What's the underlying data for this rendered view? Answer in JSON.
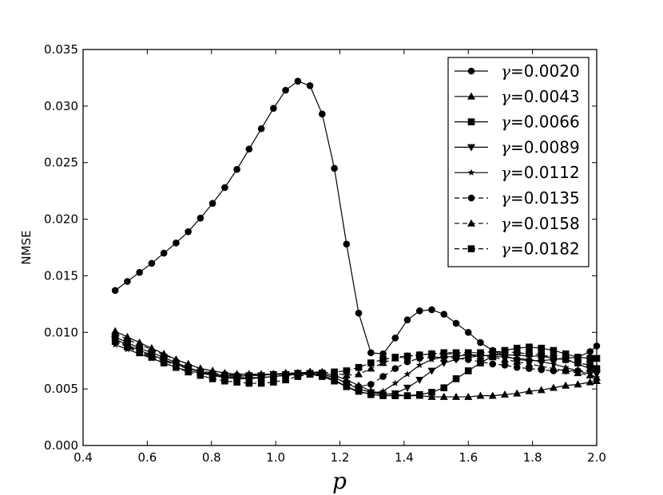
{
  "chart_data": {
    "type": "line",
    "title": "",
    "xlabel": "p",
    "ylabel": "NMSE",
    "xlim": [
      0.4,
      2.0
    ],
    "ylim": [
      0.0,
      0.035
    ],
    "grid": false,
    "legend_position": "top-right",
    "xticks": [
      "0.4",
      "0.6",
      "0.8",
      "1.0",
      "1.2",
      "1.4",
      "1.6",
      "1.8",
      "2.0"
    ],
    "yticks": [
      "0.000",
      "0.005",
      "0.010",
      "0.015",
      "0.020",
      "0.025",
      "0.030",
      "0.035"
    ],
    "x": [
      0.5,
      0.5379,
      0.5759,
      0.6138,
      0.6517,
      0.6897,
      0.7276,
      0.7655,
      0.8034,
      0.8414,
      0.8793,
      0.9172,
      0.9552,
      0.9931,
      1.031,
      1.069,
      1.1069,
      1.1448,
      1.1828,
      1.2207,
      1.2586,
      1.2966,
      1.3345,
      1.3724,
      1.4103,
      1.4483,
      1.4862,
      1.5241,
      1.5621,
      1.6,
      1.6379,
      1.6759,
      1.7138,
      1.7517,
      1.7897,
      1.8276,
      1.8655,
      1.9034,
      1.9414,
      1.9793,
      2.0
    ],
    "series": [
      {
        "name": "γ=0.0020",
        "marker": "circle",
        "linestyle": "solid",
        "values": [
          0.0137,
          0.0145,
          0.0153,
          0.0161,
          0.017,
          0.0179,
          0.0189,
          0.0201,
          0.0214,
          0.0228,
          0.0244,
          0.0262,
          0.028,
          0.0298,
          0.0314,
          0.0322,
          0.0318,
          0.0293,
          0.0245,
          0.0178,
          0.0117,
          0.0082,
          0.0081,
          0.0095,
          0.0111,
          0.0119,
          0.012,
          0.0116,
          0.0108,
          0.01,
          0.0091,
          0.0084,
          0.0079,
          0.0076,
          0.0075,
          0.0075,
          0.0076,
          0.0077,
          0.0078,
          0.0083,
          0.0088
        ]
      },
      {
        "name": "γ=0.0043",
        "marker": "triangle-up",
        "linestyle": "solid",
        "values": [
          0.0101,
          0.0096,
          0.0091,
          0.0086,
          0.0081,
          0.0076,
          0.0072,
          0.0068,
          0.0066,
          0.0064,
          0.0063,
          0.0063,
          0.0063,
          0.0063,
          0.0064,
          0.0064,
          0.0065,
          0.0064,
          0.0062,
          0.0058,
          0.0053,
          0.0048,
          0.0046,
          0.0045,
          0.0044,
          0.0044,
          0.0043,
          0.0043,
          0.0043,
          0.0043,
          0.0044,
          0.0044,
          0.0045,
          0.0046,
          0.0048,
          0.0049,
          0.0051,
          0.0053,
          0.0054,
          0.0056,
          0.0057
        ]
      },
      {
        "name": "γ=0.0066",
        "marker": "square",
        "linestyle": "solid",
        "values": [
          0.0096,
          0.0091,
          0.0086,
          0.0082,
          0.0078,
          0.0073,
          0.0069,
          0.0065,
          0.0062,
          0.006,
          0.0059,
          0.0059,
          0.006,
          0.0061,
          0.0062,
          0.0063,
          0.0063,
          0.0061,
          0.0057,
          0.0052,
          0.0048,
          0.0045,
          0.0044,
          0.0044,
          0.0044,
          0.0045,
          0.0047,
          0.0051,
          0.0059,
          0.0066,
          0.0073,
          0.0079,
          0.0084,
          0.0086,
          0.0087,
          0.0086,
          0.0084,
          0.0081,
          0.0078,
          0.0077,
          0.0077
        ]
      },
      {
        "name": "γ=0.0089",
        "marker": "triangle-down",
        "linestyle": "solid",
        "values": [
          0.0094,
          0.0089,
          0.0084,
          0.008,
          0.0076,
          0.0072,
          0.0068,
          0.0065,
          0.0063,
          0.0062,
          0.0061,
          0.0062,
          0.0062,
          0.0063,
          0.0063,
          0.0064,
          0.0064,
          0.0063,
          0.006,
          0.0055,
          0.005,
          0.0047,
          0.0045,
          0.0046,
          0.0051,
          0.0058,
          0.0066,
          0.0073,
          0.0076,
          0.0078,
          0.0079,
          0.008,
          0.008,
          0.008,
          0.0079,
          0.0079,
          0.0077,
          0.0076,
          0.0072,
          0.0068,
          0.0063
        ]
      },
      {
        "name": "γ=0.0112",
        "marker": "star",
        "linestyle": "solid",
        "values": [
          0.0089,
          0.0085,
          0.0081,
          0.0077,
          0.0073,
          0.0069,
          0.0066,
          0.0064,
          0.0062,
          0.0061,
          0.006,
          0.006,
          0.006,
          0.0061,
          0.0062,
          0.0063,
          0.0063,
          0.0062,
          0.0058,
          0.0052,
          0.0047,
          0.0046,
          0.0048,
          0.0055,
          0.0063,
          0.0071,
          0.0076,
          0.0078,
          0.0079,
          0.008,
          0.008,
          0.0079,
          0.0078,
          0.0077,
          0.0076,
          0.0074,
          0.0072,
          0.0069,
          0.0066,
          0.0063,
          0.006
        ]
      },
      {
        "name": "γ=0.0135",
        "marker": "circle",
        "linestyle": "dashed",
        "values": [
          0.0093,
          0.0088,
          0.0083,
          0.0079,
          0.0075,
          0.0071,
          0.0068,
          0.0066,
          0.0064,
          0.0063,
          0.0062,
          0.0062,
          0.0062,
          0.0063,
          0.0063,
          0.0064,
          0.0064,
          0.0063,
          0.006,
          0.0055,
          0.0052,
          0.0054,
          0.0061,
          0.0068,
          0.0074,
          0.0077,
          0.0078,
          0.0078,
          0.0077,
          0.0076,
          0.0074,
          0.0072,
          0.0071,
          0.0069,
          0.0068,
          0.0067,
          0.0066,
          0.0066,
          0.0066,
          0.0066,
          0.0066
        ]
      },
      {
        "name": "γ=0.0158",
        "marker": "triangle-up",
        "linestyle": "dashed",
        "values": [
          0.0099,
          0.0094,
          0.0089,
          0.0085,
          0.008,
          0.0076,
          0.0072,
          0.0068,
          0.0066,
          0.0064,
          0.0063,
          0.0063,
          0.0063,
          0.0063,
          0.0064,
          0.0064,
          0.0065,
          0.0065,
          0.0064,
          0.0062,
          0.0063,
          0.0068,
          0.0073,
          0.0077,
          0.0079,
          0.008,
          0.0081,
          0.0081,
          0.0081,
          0.008,
          0.0079,
          0.0078,
          0.0076,
          0.0074,
          0.0072,
          0.007,
          0.0068,
          0.0066,
          0.0064,
          0.0062,
          0.006
        ]
      },
      {
        "name": "γ=0.0182",
        "marker": "square",
        "linestyle": "dashed",
        "values": [
          0.0092,
          0.0087,
          0.0082,
          0.0078,
          0.0073,
          0.0069,
          0.0065,
          0.0062,
          0.0059,
          0.0057,
          0.0056,
          0.0055,
          0.0055,
          0.0056,
          0.0058,
          0.0061,
          0.0063,
          0.0064,
          0.0065,
          0.0066,
          0.0069,
          0.0073,
          0.0076,
          0.0078,
          0.0079,
          0.008,
          0.0081,
          0.0082,
          0.0082,
          0.0082,
          0.0082,
          0.0083,
          0.0083,
          0.0082,
          0.0081,
          0.008,
          0.0078,
          0.0076,
          0.0073,
          0.0071,
          0.0068
        ]
      }
    ]
  }
}
